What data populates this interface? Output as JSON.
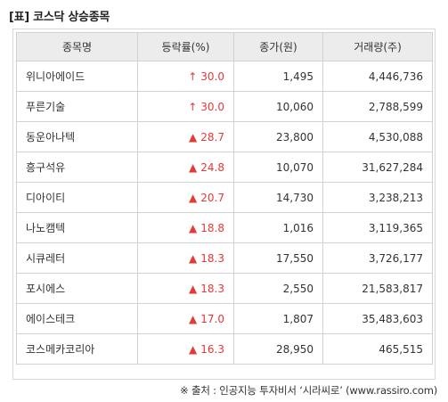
{
  "title": "[표] 코스닥 상승종목",
  "columns": [
    "종목명",
    "등락률(%)",
    "종가(원)",
    "거래량(주)"
  ],
  "rows": [
    {
      "name": "위니아에이드",
      "mark": "↑",
      "change": "30.0",
      "close": "1,495",
      "volume": "4,446,736"
    },
    {
      "name": "푸른기술",
      "mark": "↑",
      "change": "30.0",
      "close": "10,060",
      "volume": "2,788,599"
    },
    {
      "name": "동운아나텍",
      "mark": "▲",
      "change": "28.7",
      "close": "23,800",
      "volume": "4,530,088"
    },
    {
      "name": "흥구석유",
      "mark": "▲",
      "change": "24.8",
      "close": "10,070",
      "volume": "31,627,284"
    },
    {
      "name": "디아이티",
      "mark": "▲",
      "change": "20.7",
      "close": "14,730",
      "volume": "3,238,213"
    },
    {
      "name": "나노캠텍",
      "mark": "▲",
      "change": "18.8",
      "close": "1,016",
      "volume": "3,119,365"
    },
    {
      "name": "시큐레터",
      "mark": "▲",
      "change": "18.3",
      "close": "17,550",
      "volume": "3,726,177"
    },
    {
      "name": "포시에스",
      "mark": "▲",
      "change": "18.3",
      "close": "2,550",
      "volume": "21,583,817"
    },
    {
      "name": "에이스테크",
      "mark": "▲",
      "change": "17.0",
      "close": "1,807",
      "volume": "35,483,603"
    },
    {
      "name": "코스메카코리아",
      "mark": "▲",
      "change": "16.3",
      "close": "28,950",
      "volume": "465,515"
    }
  ],
  "source": "※ 출처 : 인공지능 투자비서 ‘시라씨로’ (www.rassiro.com)",
  "colors": {
    "up": "#e53935",
    "header_bg": "#ececec",
    "border": "#d2d2d2"
  }
}
